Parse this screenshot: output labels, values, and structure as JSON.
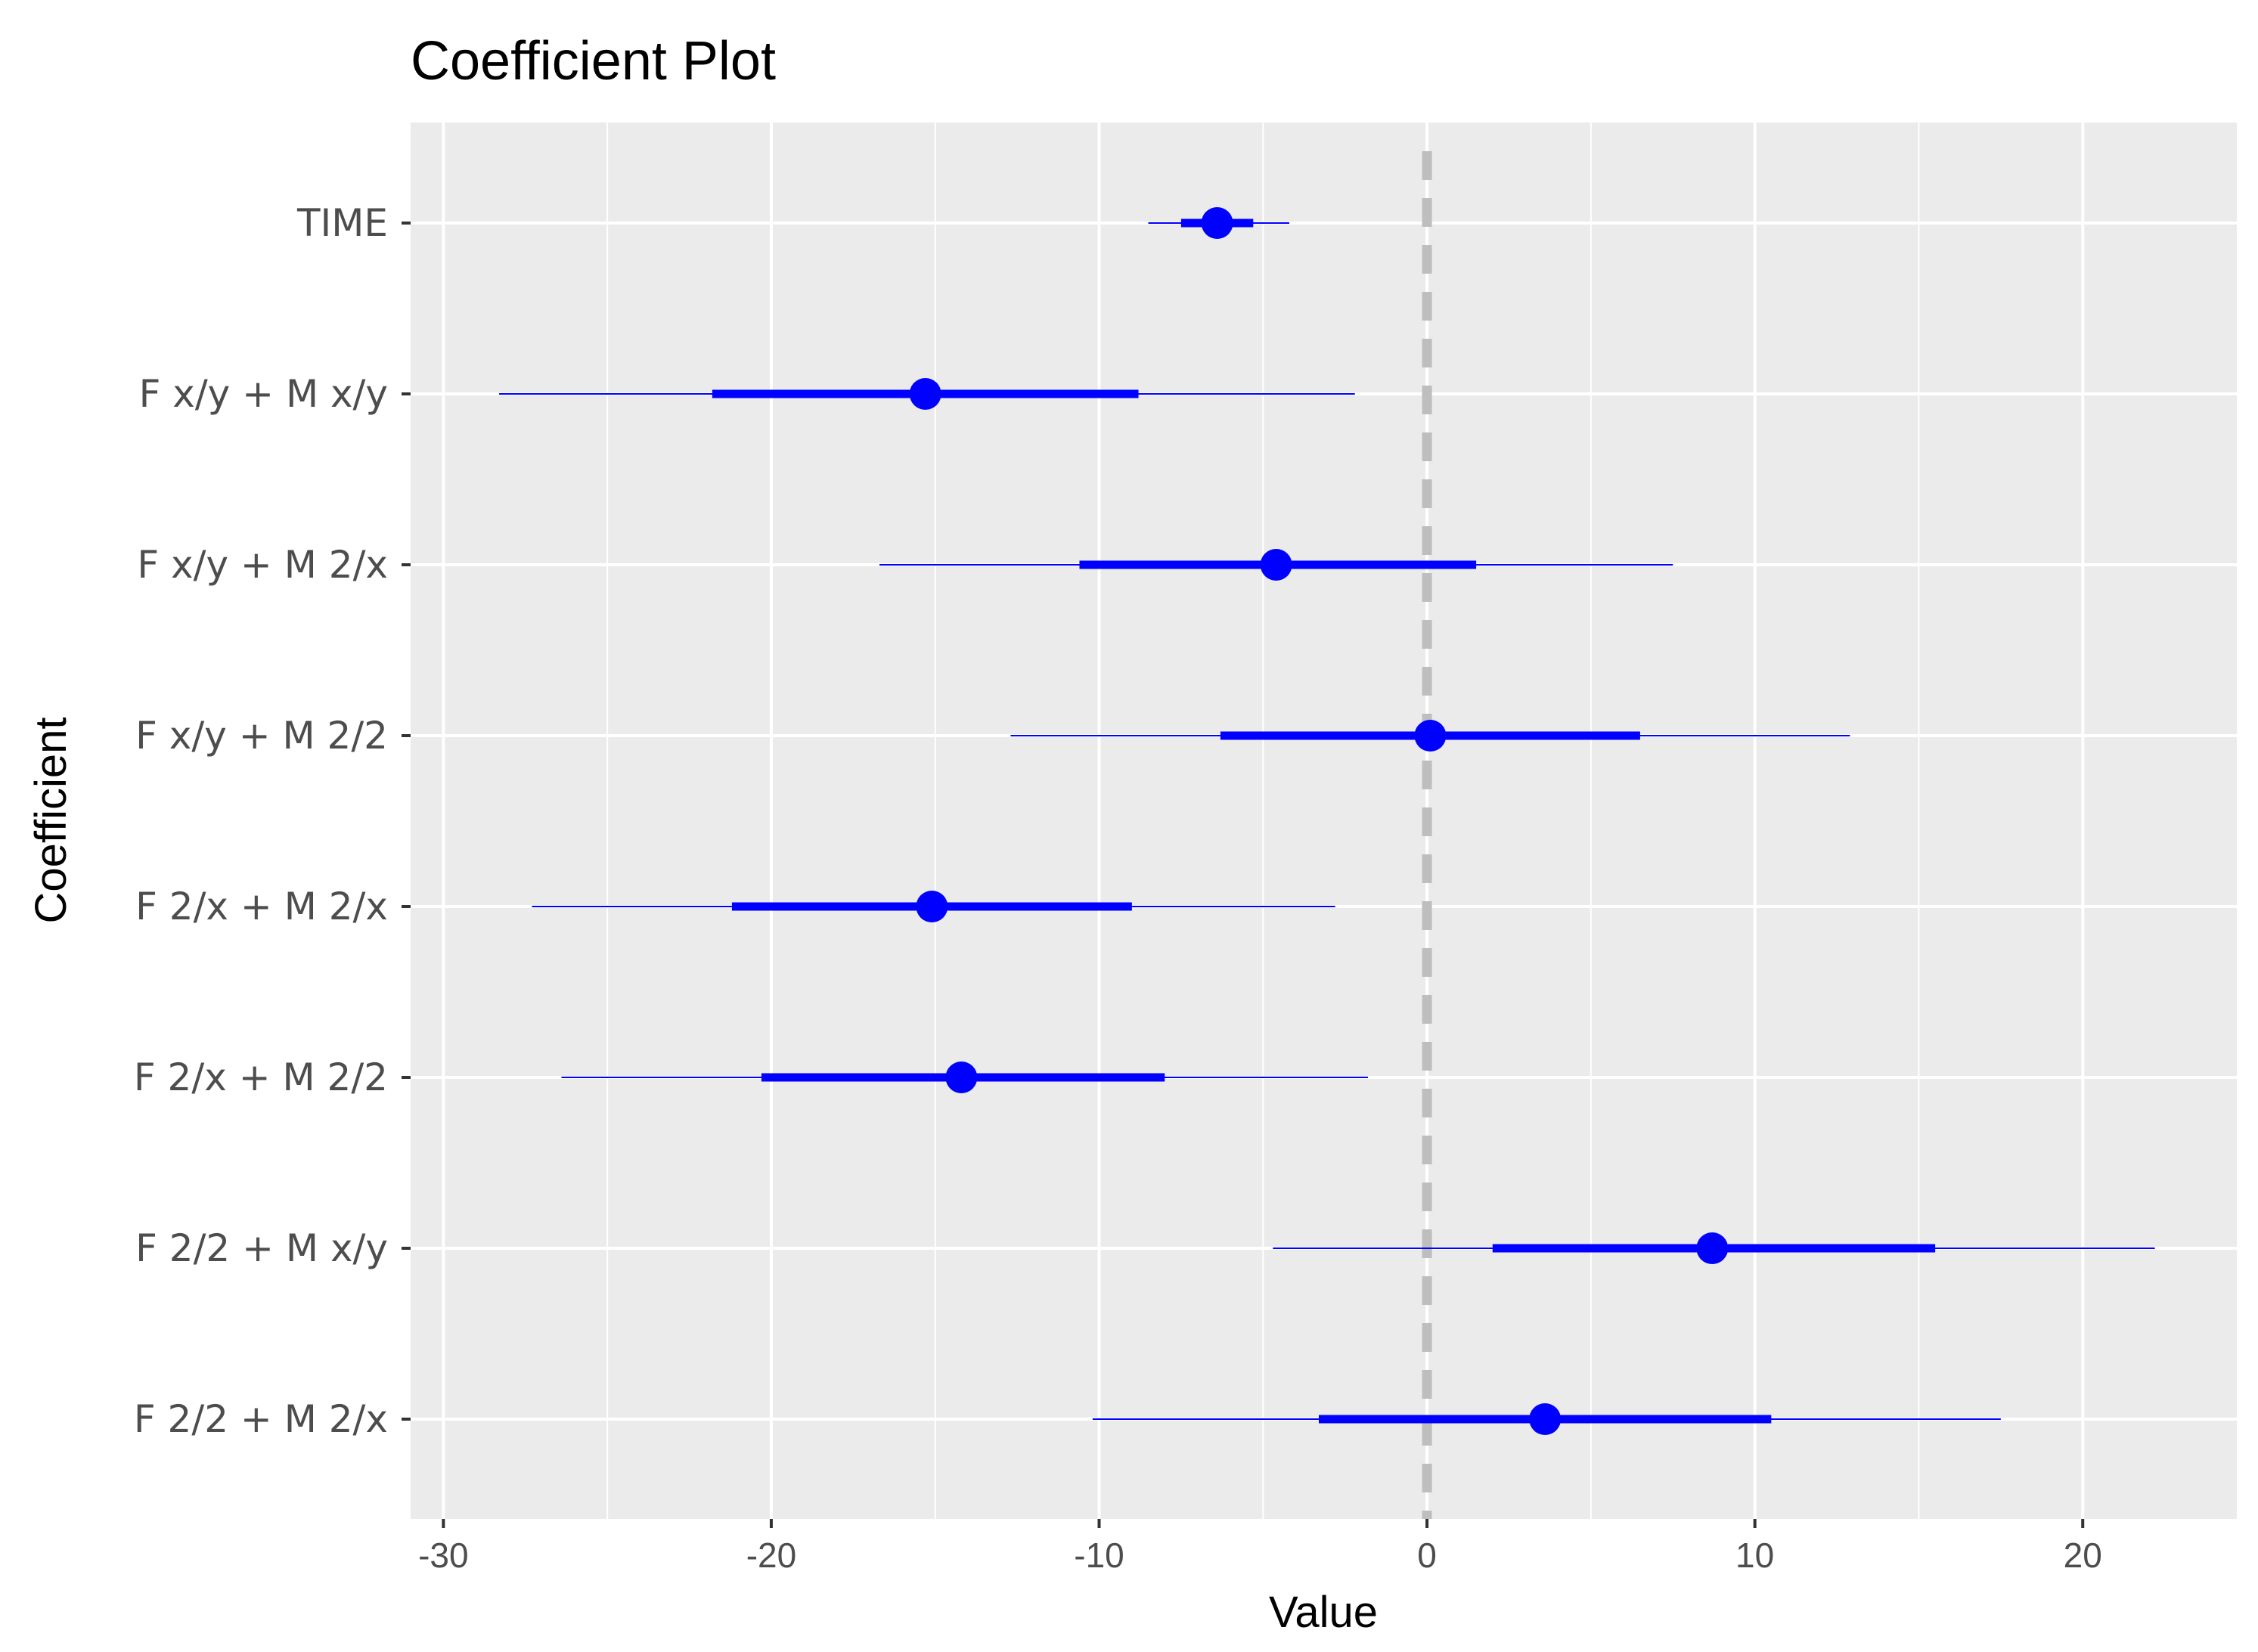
{
  "chart_data": {
    "type": "coefficient-plot",
    "title": "Coefficient Plot",
    "xlabel": "Value",
    "ylabel": "Coefficient",
    "xlim": [
      -31,
      24.7
    ],
    "x_ticks": [
      -30,
      -20,
      -10,
      0,
      10,
      20
    ],
    "x_tick_labels": [
      "-30",
      "-20",
      "-10",
      "0",
      "10",
      "20"
    ],
    "reference_line": 0,
    "grid": true,
    "point_color": "#0000ff",
    "panel_background": "#ebebeb",
    "coefficients": [
      {
        "name": "TIME",
        "value": -6.4,
        "inner": [
          -7.5,
          -5.3
        ],
        "outer": [
          -8.5,
          -4.2
        ]
      },
      {
        "name": "F x/y + M x/y",
        "value": -15.3,
        "inner": [
          -21.8,
          -8.8
        ],
        "outer": [
          -28.3,
          -2.2
        ]
      },
      {
        "name": "F x/y + M 2/x",
        "value": -4.6,
        "inner": [
          -10.6,
          1.5
        ],
        "outer": [
          -16.7,
          7.5
        ]
      },
      {
        "name": "F x/y + M 2/2",
        "value": 0.1,
        "inner": [
          -6.3,
          6.5
        ],
        "outer": [
          -12.7,
          12.9
        ]
      },
      {
        "name": "F 2/x + M 2/x",
        "value": -15.1,
        "inner": [
          -21.2,
          -9.0
        ],
        "outer": [
          -27.3,
          -2.8
        ]
      },
      {
        "name": "F 2/x + M 2/2",
        "value": -14.2,
        "inner": [
          -20.3,
          -8.0
        ],
        "outer": [
          -26.4,
          -1.8
        ]
      },
      {
        "name": "F 2/2 + M x/y",
        "value": 8.7,
        "inner": [
          2.0,
          15.5
        ],
        "outer": [
          -4.7,
          22.2
        ]
      },
      {
        "name": "F 2/2 + M 2/x",
        "value": 3.6,
        "inner": [
          -3.3,
          10.5
        ],
        "outer": [
          -10.2,
          17.5
        ]
      }
    ]
  }
}
